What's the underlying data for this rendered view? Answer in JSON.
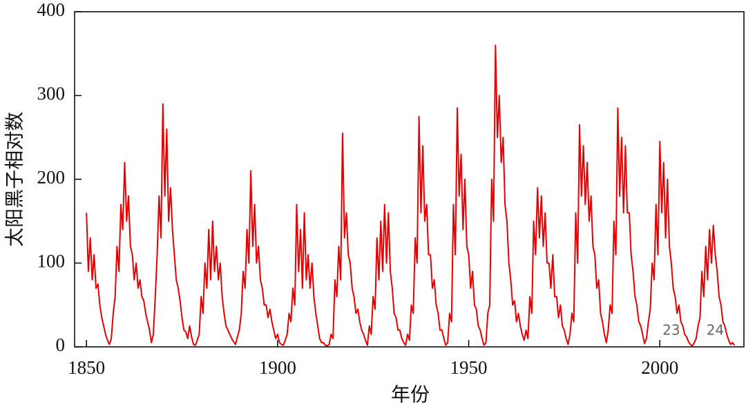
{
  "chart_data": {
    "type": "line",
    "y_label": "太阳黑子相对数",
    "x_label": "年份",
    "color": "#e60000",
    "xlim": [
      1846.9,
      2022
    ],
    "ylim": [
      0,
      400
    ],
    "xticks": [
      1850,
      1900,
      1950,
      2000
    ],
    "yticks": [
      0,
      100,
      200,
      300,
      400
    ],
    "annotations": [
      {
        "text": "23",
        "x": 2003,
        "y": 19
      },
      {
        "text": "24",
        "x": 2014.5,
        "y": 19
      }
    ],
    "x": [
      1850,
      1850.5,
      1851,
      1851.5,
      1852,
      1852.5,
      1853,
      1853.5,
      1854,
      1854.5,
      1855,
      1855.5,
      1856,
      1856.5,
      1857,
      1857.5,
      1858,
      1858.5,
      1859,
      1859.5,
      1860,
      1860.5,
      1861,
      1861.5,
      1862,
      1862.5,
      1863,
      1863.5,
      1864,
      1864.5,
      1865,
      1865.5,
      1866,
      1866.5,
      1867,
      1867.5,
      1868,
      1868.5,
      1869,
      1869.5,
      1870,
      1870.5,
      1871,
      1871.5,
      1872,
      1872.5,
      1873,
      1873.5,
      1874,
      1874.5,
      1875,
      1875.5,
      1876,
      1876.5,
      1877,
      1877.5,
      1878,
      1878.5,
      1879,
      1879.5,
      1880,
      1880.5,
      1881,
      1881.5,
      1882,
      1882.5,
      1883,
      1883.5,
      1884,
      1884.5,
      1885,
      1885.5,
      1886,
      1886.5,
      1887,
      1887.5,
      1888,
      1888.5,
      1889,
      1889.5,
      1890,
      1890.5,
      1891,
      1891.5,
      1892,
      1892.5,
      1893,
      1893.5,
      1894,
      1894.5,
      1895,
      1895.5,
      1896,
      1896.5,
      1897,
      1897.5,
      1898,
      1898.5,
      1899,
      1899.5,
      1900,
      1900.5,
      1901,
      1901.5,
      1902,
      1902.5,
      1903,
      1903.5,
      1904,
      1904.5,
      1905,
      1905.5,
      1906,
      1906.5,
      1907,
      1907.5,
      1908,
      1908.5,
      1909,
      1909.5,
      1910,
      1910.5,
      1911,
      1911.5,
      1912,
      1912.5,
      1913,
      1913.5,
      1914,
      1914.5,
      1915,
      1915.5,
      1916,
      1916.5,
      1917,
      1917.5,
      1918,
      1918.5,
      1919,
      1919.5,
      1920,
      1920.5,
      1921,
      1921.5,
      1922,
      1922.5,
      1923,
      1923.5,
      1924,
      1924.5,
      1925,
      1925.5,
      1926,
      1926.5,
      1927,
      1927.5,
      1928,
      1928.5,
      1929,
      1929.5,
      1930,
      1930.5,
      1931,
      1931.5,
      1932,
      1932.5,
      1933,
      1933.5,
      1934,
      1934.5,
      1935,
      1935.5,
      1936,
      1936.5,
      1937,
      1937.5,
      1938,
      1938.5,
      1939,
      1939.5,
      1940,
      1940.5,
      1941,
      1941.5,
      1942,
      1942.5,
      1943,
      1943.5,
      1944,
      1944.5,
      1945,
      1945.5,
      1946,
      1946.5,
      1947,
      1947.5,
      1948,
      1948.5,
      1949,
      1949.5,
      1950,
      1950.5,
      1951,
      1951.5,
      1952,
      1952.5,
      1953,
      1953.5,
      1954,
      1954.5,
      1955,
      1955.5,
      1956,
      1956.5,
      1957,
      1957.5,
      1958,
      1958.5,
      1959,
      1959.5,
      1960,
      1960.5,
      1961,
      1961.5,
      1962,
      1962.5,
      1963,
      1963.5,
      1964,
      1964.5,
      1965,
      1965.5,
      1966,
      1966.5,
      1967,
      1967.5,
      1968,
      1968.5,
      1969,
      1969.5,
      1970,
      1970.5,
      1971,
      1971.5,
      1972,
      1972.5,
      1973,
      1973.5,
      1974,
      1974.5,
      1975,
      1975.5,
      1976,
      1976.5,
      1977,
      1977.5,
      1978,
      1978.5,
      1979,
      1979.5,
      1980,
      1980.5,
      1981,
      1981.5,
      1982,
      1982.5,
      1983,
      1983.5,
      1984,
      1984.5,
      1985,
      1985.5,
      1986,
      1986.5,
      1987,
      1987.5,
      1988,
      1988.5,
      1989,
      1989.5,
      1990,
      1990.5,
      1991,
      1991.5,
      1992,
      1992.5,
      1993,
      1993.5,
      1994,
      1994.5,
      1995,
      1995.5,
      1996,
      1996.5,
      1997,
      1997.5,
      1998,
      1998.5,
      1999,
      1999.5,
      2000,
      2000.5,
      2001,
      2001.5,
      2002,
      2002.5,
      2003,
      2003.5,
      2004,
      2004.5,
      2005,
      2005.5,
      2006,
      2006.5,
      2007,
      2007.5,
      2008,
      2008.5,
      2009,
      2009.5,
      2010,
      2010.5,
      2011,
      2011.5,
      2012,
      2012.5,
      2013,
      2013.5,
      2014,
      2014.5,
      2015,
      2015.5,
      2016,
      2016.5,
      2017,
      2017.5,
      2018,
      2018.5,
      2019,
      2019.5
    ],
    "values": [
      160,
      90,
      130,
      80,
      110,
      70,
      75,
      50,
      35,
      25,
      15,
      8,
      3,
      10,
      40,
      60,
      120,
      90,
      170,
      140,
      220,
      150,
      180,
      120,
      110,
      80,
      100,
      70,
      80,
      60,
      55,
      40,
      30,
      20,
      5,
      15,
      60,
      110,
      180,
      130,
      290,
      180,
      260,
      150,
      190,
      140,
      110,
      80,
      70,
      55,
      35,
      20,
      18,
      10,
      25,
      12,
      3,
      2,
      8,
      15,
      60,
      40,
      100,
      70,
      140,
      80,
      150,
      90,
      120,
      80,
      100,
      60,
      40,
      25,
      20,
      15,
      10,
      6,
      3,
      12,
      20,
      40,
      90,
      70,
      140,
      100,
      210,
      120,
      170,
      100,
      120,
      80,
      70,
      50,
      50,
      35,
      45,
      30,
      20,
      10,
      15,
      5,
      3,
      2,
      8,
      15,
      40,
      30,
      70,
      50,
      170,
      90,
      140,
      70,
      160,
      80,
      110,
      70,
      100,
      60,
      40,
      25,
      10,
      5,
      5,
      2,
      1,
      3,
      15,
      10,
      80,
      60,
      120,
      80,
      255,
      130,
      160,
      110,
      100,
      70,
      60,
      40,
      45,
      30,
      20,
      15,
      8,
      2,
      25,
      15,
      60,
      45,
      130,
      80,
      150,
      90,
      170,
      100,
      160,
      90,
      70,
      40,
      35,
      20,
      20,
      10,
      5,
      2,
      15,
      8,
      50,
      40,
      130,
      100,
      275,
      160,
      240,
      150,
      170,
      110,
      110,
      70,
      80,
      50,
      40,
      20,
      20,
      10,
      2,
      5,
      40,
      30,
      170,
      110,
      285,
      180,
      230,
      140,
      200,
      120,
      110,
      70,
      90,
      50,
      45,
      25,
      20,
      10,
      2,
      5,
      40,
      50,
      200,
      150,
      360,
      250,
      300,
      220,
      250,
      170,
      150,
      100,
      80,
      50,
      55,
      30,
      40,
      25,
      15,
      8,
      20,
      10,
      60,
      40,
      150,
      110,
      190,
      130,
      180,
      120,
      160,
      100,
      100,
      70,
      110,
      60,
      60,
      35,
      50,
      25,
      20,
      10,
      3,
      15,
      40,
      30,
      160,
      100,
      265,
      180,
      240,
      170,
      220,
      150,
      180,
      120,
      110,
      70,
      80,
      40,
      30,
      15,
      5,
      20,
      50,
      40,
      150,
      110,
      285,
      180,
      250,
      160,
      240,
      160,
      160,
      110,
      90,
      60,
      50,
      30,
      25,
      15,
      4,
      10,
      30,
      45,
      100,
      80,
      170,
      110,
      245,
      160,
      220,
      130,
      200,
      120,
      100,
      70,
      60,
      40,
      50,
      30,
      25,
      15,
      12,
      6,
      3,
      1,
      5,
      10,
      25,
      35,
      90,
      60,
      120,
      80,
      140,
      100,
      145,
      110,
      90,
      60,
      50,
      30,
      25,
      15,
      8,
      3,
      5,
      2
    ]
  }
}
